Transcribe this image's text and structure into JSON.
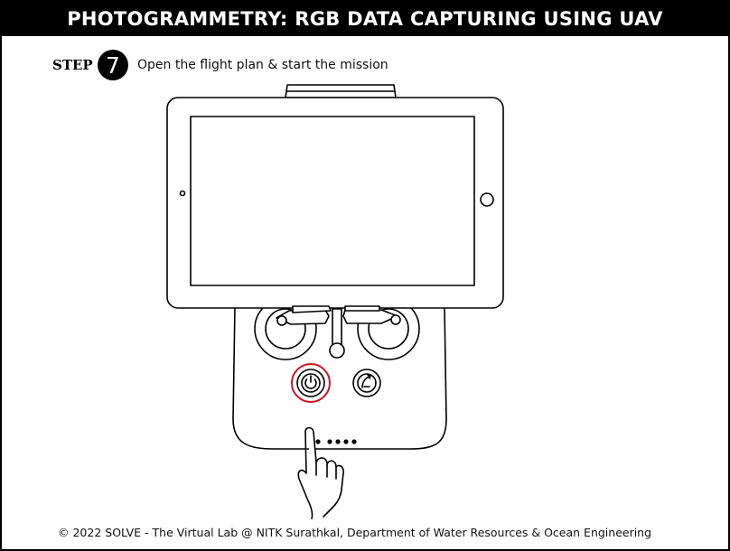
{
  "header": {
    "title": "PHOTOGRAMMETRY: RGB DATA CAPTURING USING UAV"
  },
  "step": {
    "label": "STEP",
    "number": "7",
    "instruction": "Open the flight plan & start the mission"
  },
  "illustration": {
    "icons": [
      "tablet-icon",
      "remote-controller-icon",
      "power-button-icon",
      "rth-button-icon",
      "pointing-hand-icon"
    ],
    "highlight_color": "#d0141e"
  },
  "footer": {
    "copyright": "© 2022 SOLVE - The Virtual Lab @ NITK Surathkal, Department of Water Resources & Ocean Engineering"
  }
}
